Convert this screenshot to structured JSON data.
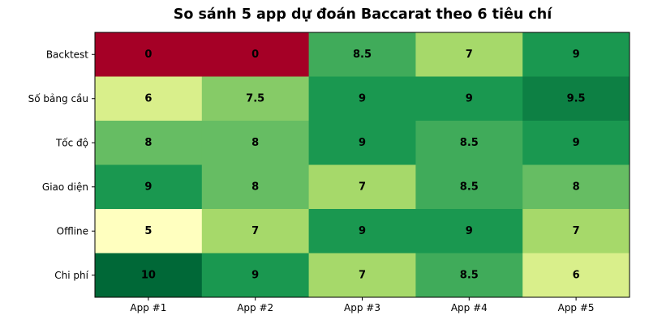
{
  "chart_data": {
    "type": "heatmap",
    "title": "So sánh 5 app dự đoán Baccarat theo 6 tiêu chí",
    "x_categories": [
      "App #1",
      "App #2",
      "App #3",
      "App #4",
      "App #5"
    ],
    "y_categories": [
      "Backtest",
      "Số bảng cầu",
      "Tốc độ",
      "Giao diện",
      "Offline",
      "Chi phí"
    ],
    "values": [
      [
        0,
        0,
        8.5,
        7,
        9
      ],
      [
        6,
        7.5,
        9,
        9,
        9.5
      ],
      [
        8,
        8,
        9,
        8.5,
        9
      ],
      [
        9,
        8,
        7,
        8.5,
        8
      ],
      [
        5,
        7,
        9,
        9,
        7
      ],
      [
        10,
        9,
        7,
        8.5,
        6
      ]
    ],
    "value_labels": [
      [
        "0",
        "0",
        "8.5",
        "7",
        "9"
      ],
      [
        "6",
        "7.5",
        "9",
        "9",
        "9.5"
      ],
      [
        "8",
        "8",
        "9",
        "8.5",
        "9"
      ],
      [
        "9",
        "8",
        "7",
        "8.5",
        "8"
      ],
      [
        "5",
        "7",
        "9",
        "9",
        "7"
      ],
      [
        "10",
        "9",
        "7",
        "8.5",
        "6"
      ]
    ],
    "colormap": "RdYlGn",
    "value_range": [
      0,
      10
    ]
  }
}
